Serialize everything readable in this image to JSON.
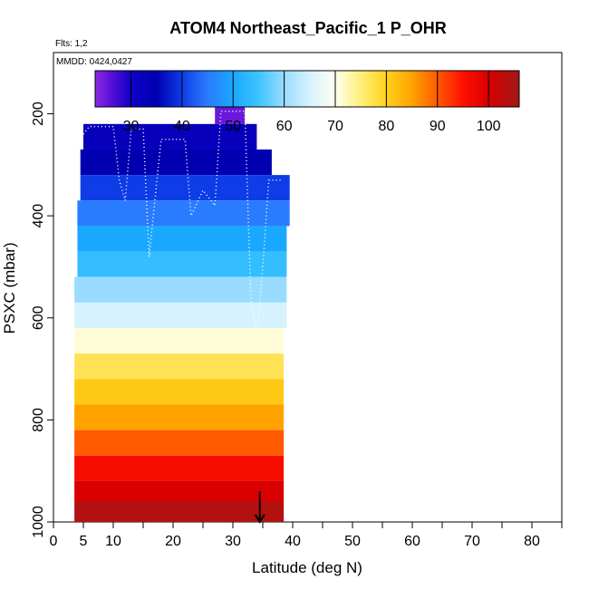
{
  "chart_data": {
    "type": "heatmap",
    "title": "ATOM4 Northeast_Pacific_1 P_OHR",
    "flights_label": "Flts: 1,2",
    "dates_label": "MMDD: 0424,0427",
    "xlabel": "Latitude (deg N)",
    "ylabel": "PSXC (mbar)",
    "xlim": [
      0,
      85
    ],
    "ylim": [
      1000,
      80
    ],
    "x_ticks": [
      0,
      5,
      10,
      20,
      30,
      40,
      50,
      60,
      70,
      80
    ],
    "x_minor_ticks": [
      15,
      25,
      35,
      45,
      55,
      65,
      75,
      85
    ],
    "y_ticks": [
      200,
      400,
      600,
      800,
      1000
    ],
    "colorbar": {
      "range": [
        23,
        106
      ],
      "ticks": [
        30,
        40,
        50,
        60,
        70,
        80,
        90,
        100
      ],
      "stops": [
        {
          "v": 23,
          "c": "#8a2be2"
        },
        {
          "v": 26,
          "c": "#5a10d8"
        },
        {
          "v": 30,
          "c": "#1000c8"
        },
        {
          "v": 35,
          "c": "#0000b0"
        },
        {
          "v": 40,
          "c": "#0e3ce6"
        },
        {
          "v": 45,
          "c": "#2a7cff"
        },
        {
          "v": 50,
          "c": "#1aa8ff"
        },
        {
          "v": 55,
          "c": "#3cc4ff"
        },
        {
          "v": 60,
          "c": "#9adcff"
        },
        {
          "v": 65,
          "c": "#d6f2ff"
        },
        {
          "v": 70,
          "c": "#fffff0"
        },
        {
          "v": 75,
          "c": "#ffef7a"
        },
        {
          "v": 80,
          "c": "#ffd21a"
        },
        {
          "v": 85,
          "c": "#ffa200"
        },
        {
          "v": 90,
          "c": "#ff5a00"
        },
        {
          "v": 95,
          "c": "#ff1000"
        },
        {
          "v": 100,
          "c": "#d80000"
        },
        {
          "v": 106,
          "c": "#a01818"
        }
      ]
    },
    "bands": [
      {
        "p_top": 170,
        "p_bot": 220,
        "lat_min": 27,
        "lat_max": 32,
        "value": 25
      },
      {
        "p_top": 220,
        "p_bot": 270,
        "lat_min": 5,
        "lat_max": 34,
        "value": 33
      },
      {
        "p_top": 270,
        "p_bot": 320,
        "lat_min": 4.5,
        "lat_max": 36.5,
        "value": 35
      },
      {
        "p_top": 320,
        "p_bot": 370,
        "lat_min": 4.5,
        "lat_max": 39.5,
        "value": 40
      },
      {
        "p_top": 370,
        "p_bot": 420,
        "lat_min": 4,
        "lat_max": 39.5,
        "value": 45
      },
      {
        "p_top": 420,
        "p_bot": 470,
        "lat_min": 4,
        "lat_max": 39,
        "value": 50
      },
      {
        "p_top": 470,
        "p_bot": 520,
        "lat_min": 4,
        "lat_max": 39,
        "value": 54
      },
      {
        "p_top": 520,
        "p_bot": 570,
        "lat_min": 3.5,
        "lat_max": 39,
        "value": 60
      },
      {
        "p_top": 570,
        "p_bot": 620,
        "lat_min": 3.5,
        "lat_max": 39,
        "value": 65
      },
      {
        "p_top": 620,
        "p_bot": 670,
        "lat_min": 3.5,
        "lat_max": 38.5,
        "value": 71
      },
      {
        "p_top": 670,
        "p_bot": 720,
        "lat_min": 3.5,
        "lat_max": 38.5,
        "value": 77
      },
      {
        "p_top": 720,
        "p_bot": 770,
        "lat_min": 3.5,
        "lat_max": 38.5,
        "value": 81
      },
      {
        "p_top": 770,
        "p_bot": 820,
        "lat_min": 3.5,
        "lat_max": 38.5,
        "value": 85
      },
      {
        "p_top": 820,
        "p_bot": 870,
        "lat_min": 3.5,
        "lat_max": 38.5,
        "value": 90
      },
      {
        "p_top": 870,
        "p_bot": 920,
        "lat_min": 3.5,
        "lat_max": 38.5,
        "value": 96
      },
      {
        "p_top": 920,
        "p_bot": 960,
        "lat_min": 3.5,
        "lat_max": 38.5,
        "value": 100
      },
      {
        "p_top": 960,
        "p_bot": 1010,
        "lat_min": 3.5,
        "lat_max": 38.5,
        "value": 104
      }
    ],
    "flight_track": [
      [
        5,
        240
      ],
      [
        6,
        225
      ],
      [
        10,
        225
      ],
      [
        11,
        330
      ],
      [
        12,
        370
      ],
      [
        13,
        230
      ],
      [
        15,
        230
      ],
      [
        16,
        480
      ],
      [
        18,
        250
      ],
      [
        22,
        250
      ],
      [
        23,
        400
      ],
      [
        25,
        350
      ],
      [
        27,
        380
      ],
      [
        28,
        195
      ],
      [
        32,
        195
      ],
      [
        33,
        560
      ],
      [
        34,
        640
      ],
      [
        35,
        500
      ],
      [
        36,
        330
      ],
      [
        38,
        330
      ]
    ],
    "track_color": "#ffffff",
    "marker": {
      "lat": 34.5,
      "p_from": 940,
      "p_to": 1000
    }
  }
}
